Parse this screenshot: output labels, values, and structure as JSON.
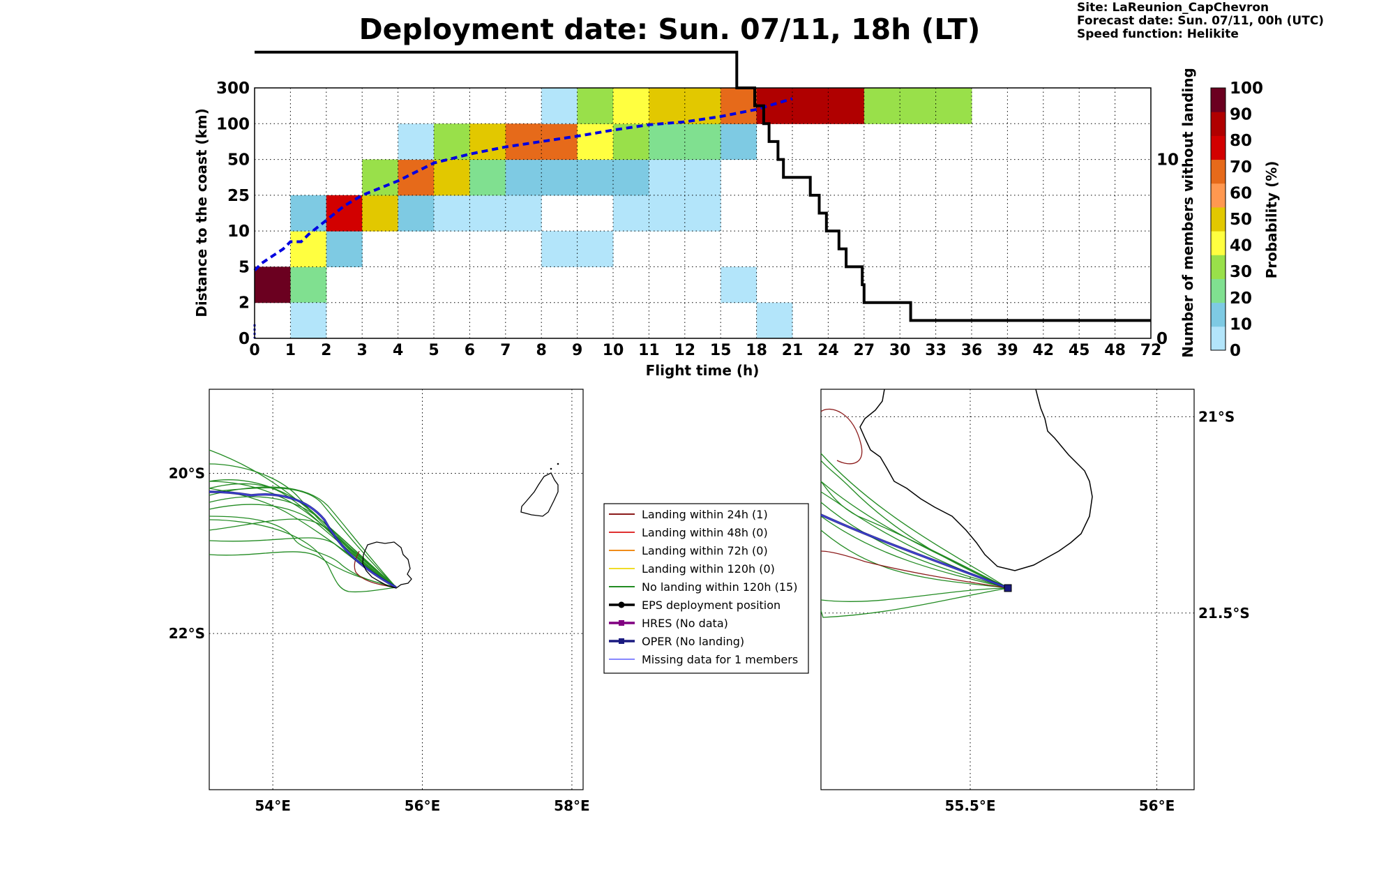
{
  "title": "Deployment date: Sun. 07/11, 18h (LT)",
  "meta": {
    "site": "Site: LaReunion_CapChevron",
    "forecast": "Forecast date: Sun. 07/11, 00h (UTC)",
    "speed": "Speed function: Helikite"
  },
  "chart_data": [
    {
      "type": "heatmap",
      "xlabel": "Flight time (h)",
      "ylabel": "Distance to the coast (km)",
      "y2label": "Number of members without landing",
      "colorbar_label": "Probability (%)",
      "grid": true,
      "x_ticks": [
        "0",
        "1",
        "2",
        "3",
        "4",
        "5",
        "6",
        "7",
        "8",
        "9",
        "10",
        "11",
        "12",
        "15",
        "18",
        "21",
        "24",
        "27",
        "30",
        "33",
        "36",
        "39",
        "42",
        "45",
        "48",
        "72"
      ],
      "y_ticks": [
        "0",
        "2",
        "5",
        "10",
        "25",
        "50",
        "100",
        "300"
      ],
      "y2_ticks": [
        "0",
        "10"
      ],
      "y2_range": [
        0,
        14
      ],
      "colorbar_ticks": [
        "0",
        "10",
        "20",
        "30",
        "40",
        "50",
        "60",
        "70",
        "80",
        "90",
        "100"
      ],
      "colorbar_colors": [
        "#b3e5fa",
        "#7ecae3",
        "#80e090",
        "#99e04a",
        "#ffff40",
        "#e2c800",
        "#ff9850",
        "#e66a1a",
        "#d20000",
        "#b00000",
        "#6b0020"
      ],
      "cells_note": "cell = [x_bin_index, y_bin_index, probability_bin]",
      "cells": [
        [
          0,
          1,
          10
        ],
        [
          1,
          1,
          2
        ],
        [
          1,
          0,
          0
        ],
        [
          1,
          2,
          4
        ],
        [
          1,
          3,
          1
        ],
        [
          2,
          2,
          1
        ],
        [
          2,
          3,
          8
        ],
        [
          3,
          3,
          5
        ],
        [
          3,
          4,
          3
        ],
        [
          4,
          3,
          1
        ],
        [
          4,
          4,
          7
        ],
        [
          4,
          5,
          0
        ],
        [
          5,
          3,
          0
        ],
        [
          5,
          4,
          5
        ],
        [
          5,
          5,
          3
        ],
        [
          6,
          3,
          0
        ],
        [
          6,
          4,
          2
        ],
        [
          6,
          5,
          5
        ],
        [
          7,
          3,
          0
        ],
        [
          7,
          4,
          1
        ],
        [
          7,
          5,
          7
        ],
        [
          8,
          2,
          0
        ],
        [
          8,
          4,
          1
        ],
        [
          8,
          5,
          7
        ],
        [
          8,
          6,
          0
        ],
        [
          9,
          2,
          0
        ],
        [
          9,
          4,
          1
        ],
        [
          9,
          5,
          4
        ],
        [
          9,
          6,
          3
        ],
        [
          10,
          3,
          0
        ],
        [
          10,
          4,
          1
        ],
        [
          10,
          5,
          3
        ],
        [
          10,
          6,
          4
        ],
        [
          11,
          3,
          0
        ],
        [
          11,
          4,
          0
        ],
        [
          11,
          5,
          2
        ],
        [
          11,
          6,
          5
        ],
        [
          12,
          3,
          0
        ],
        [
          12,
          4,
          0
        ],
        [
          12,
          5,
          2
        ],
        [
          12,
          6,
          5
        ],
        [
          13,
          1,
          0
        ],
        [
          13,
          5,
          1
        ],
        [
          13,
          6,
          7
        ],
        [
          14,
          0,
          0
        ],
        [
          14,
          6,
          9
        ],
        [
          15,
          6,
          9
        ],
        [
          16,
          6,
          9
        ],
        [
          17,
          6,
          3
        ],
        [
          18,
          6,
          3
        ],
        [
          19,
          6,
          3
        ]
      ],
      "median_distance_line": {
        "color": "#0000e0",
        "x_index": [
          0,
          0.2,
          0.5,
          0.8,
          1,
          1.3,
          1.5,
          2,
          2.5,
          3,
          4,
          5,
          6,
          7,
          8,
          9,
          10,
          11,
          12,
          13,
          14,
          15
        ],
        "y_index": [
          1.9,
          2.1,
          2.3,
          2.5,
          2.7,
          2.7,
          2.9,
          3.3,
          3.7,
          4.0,
          4.4,
          4.9,
          5.15,
          5.35,
          5.5,
          5.65,
          5.82,
          5.97,
          6.05,
          6.2,
          6.4,
          6.7
        ]
      },
      "members_without_landing_line": {
        "color": "#000000",
        "x_index": [
          0,
          13.45,
          13.45,
          13.95,
          13.95,
          14.2,
          14.2,
          14.35,
          14.35,
          14.6,
          14.6,
          14.75,
          14.75,
          15.5,
          15.5,
          15.75,
          15.75,
          15.95,
          15.95,
          16.3,
          16.3,
          16.5,
          16.5,
          16.95,
          16.95,
          17,
          17,
          18.3,
          18.3,
          25
        ],
        "members": [
          16,
          16,
          14,
          14,
          13,
          13,
          12,
          12,
          11,
          11,
          10,
          10,
          9,
          9,
          8,
          8,
          7,
          7,
          6,
          6,
          5,
          5,
          4,
          4,
          3,
          3,
          2,
          2,
          1,
          1
        ]
      }
    },
    {
      "type": "map",
      "x_ticks": [
        "54°E",
        "56°E",
        "58°E"
      ],
      "y_ticks": [
        "20°S",
        "22°S"
      ],
      "lon_range": [
        53.15,
        58.15
      ],
      "lat_range": [
        -23.95,
        -18.95
      ]
    },
    {
      "type": "map",
      "x_ticks": [
        "55.5°E",
        "56°E"
      ],
      "y_ticks": [
        "21°S",
        "21.5°S"
      ],
      "lon_range": [
        55.1,
        56.1
      ],
      "lat_range": [
        -21.95,
        -20.93
      ]
    }
  ],
  "legend": {
    "items": [
      {
        "label": "Landing within 24h (1)",
        "color": "#8b1a1a",
        "marker": "line"
      },
      {
        "label": "Landing within 48h (0)",
        "color": "#e03030",
        "marker": "line"
      },
      {
        "label": "Landing within 72h (0)",
        "color": "#f08c1a",
        "marker": "line"
      },
      {
        "label": "Landing within 120h (0)",
        "color": "#f0dc28",
        "marker": "line"
      },
      {
        "label": "No landing within 120h (15)",
        "color": "#228b22",
        "marker": "line"
      },
      {
        "label": "EPS deployment position",
        "color": "#000000",
        "marker": "dot"
      },
      {
        "label": "HRES (No data)",
        "color": "#800080",
        "marker": "square"
      },
      {
        "label": "OPER (No landing)",
        "color": "#1a1a80",
        "marker": "square"
      },
      {
        "label": "Missing data for 1 members",
        "color": "#4040ff",
        "marker": "thin"
      }
    ]
  }
}
